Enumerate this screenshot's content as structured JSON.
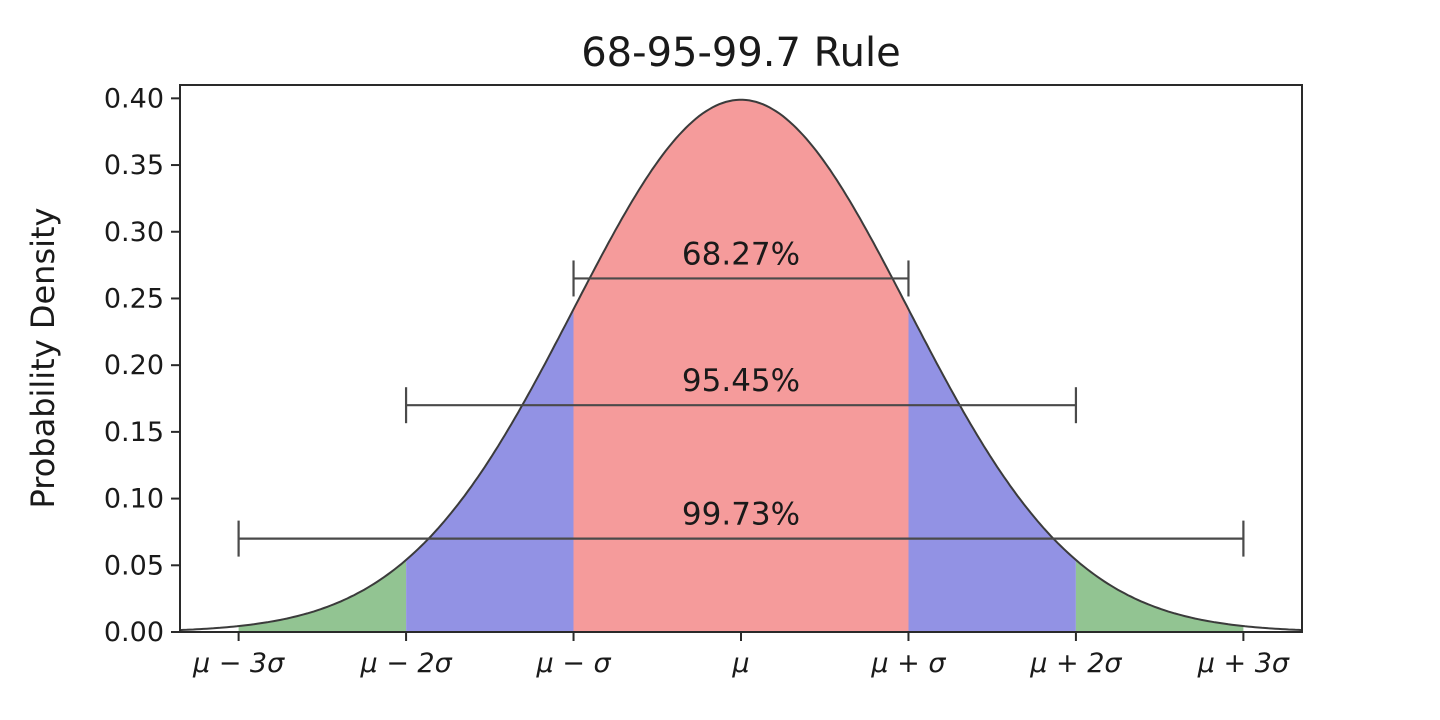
{
  "chart_data": {
    "type": "area",
    "title": "68-95-99.7 Rule",
    "xlabel": "",
    "ylabel": "Probability Density",
    "curve": "standard normal probability density function",
    "xlim": [
      -3.35,
      3.35
    ],
    "ylim": [
      0,
      0.41
    ],
    "grid": false,
    "legend": false,
    "x_ticks": [
      {
        "value": -3,
        "label": "μ − 3σ"
      },
      {
        "value": -2,
        "label": "μ − 2σ"
      },
      {
        "value": -1,
        "label": "μ − σ"
      },
      {
        "value": 0,
        "label": "μ"
      },
      {
        "value": 1,
        "label": "μ + σ"
      },
      {
        "value": 2,
        "label": "μ + 2σ"
      },
      {
        "value": 3,
        "label": "μ + 3σ"
      }
    ],
    "y_ticks": [
      {
        "value": 0.0,
        "label": "0.00"
      },
      {
        "value": 0.05,
        "label": "0.05"
      },
      {
        "value": 0.1,
        "label": "0.10"
      },
      {
        "value": 0.15,
        "label": "0.15"
      },
      {
        "value": 0.2,
        "label": "0.20"
      },
      {
        "value": 0.25,
        "label": "0.25"
      },
      {
        "value": 0.3,
        "label": "0.30"
      },
      {
        "value": 0.35,
        "label": "0.35"
      },
      {
        "value": 0.4,
        "label": "0.40"
      }
    ],
    "regions": [
      {
        "name": "minus3-to-minus2-sigma",
        "range": [
          -3,
          -2
        ],
        "color": "#92c492"
      },
      {
        "name": "minus2-to-minus1-sigma",
        "range": [
          -2,
          -1
        ],
        "color": "#9292e4"
      },
      {
        "name": "minus1-to-plus1-sigma",
        "range": [
          -1,
          1
        ],
        "color": "#f59b9b"
      },
      {
        "name": "plus1-to-plus2-sigma",
        "range": [
          1,
          2
        ],
        "color": "#9292e4"
      },
      {
        "name": "plus2-to-plus3-sigma",
        "range": [
          2,
          3
        ],
        "color": "#92c492"
      }
    ],
    "annotations": [
      {
        "label": "68.27%",
        "from": -1,
        "to": 1,
        "y": 0.265
      },
      {
        "label": "95.45%",
        "from": -2,
        "to": 2,
        "y": 0.17
      },
      {
        "label": "99.73%",
        "from": -3,
        "to": 3,
        "y": 0.07
      }
    ],
    "colors": {
      "curve": "#3b3b3b",
      "errorbar": "#4a4a4a",
      "spine": "#2a2a2a",
      "text": "#1a1a1a",
      "background": "#ffffff"
    }
  }
}
